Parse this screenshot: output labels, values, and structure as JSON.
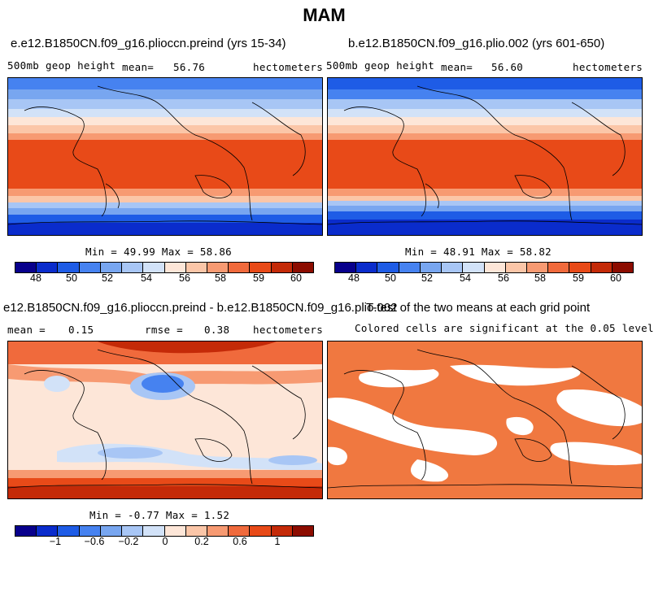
{
  "page": {
    "title": "MAM"
  },
  "panels": [
    {
      "title": "e.e12.B1850CN.f09_g16.plioccn.preind (yrs 15-34)",
      "left_label": "500mb geop height",
      "mean_label": "mean=",
      "mean_value": "56.76",
      "units": "hectometers",
      "stats": "Min =  49.99 Max =   58.86"
    },
    {
      "title": "b.e12.B1850CN.f09_g16.plio.002 (yrs 601-650)",
      "left_label": "500mb geop height",
      "mean_label": "mean=",
      "mean_value": "56.60",
      "units": "hectometers",
      "stats": "Min =  48.91 Max =   58.82"
    },
    {
      "title": "e12.B1850CN.f09_g16.plioccn.preind - b.e12.B1850CN.f09_g16.plio.002",
      "mean_label": "mean =",
      "mean_value": "0.15",
      "rmse_label": "rmse =",
      "rmse_value": "0.38",
      "units": "hectometers",
      "stats": "Min =  -0.77 Max =    1.52"
    },
    {
      "title": "T-test of the two means at each grid point",
      "subtitle": "Colored cells are significant at the 0.05 level"
    }
  ],
  "chart_data": [
    {
      "type": "heatmap",
      "title": "e.e12.B1850CN.f09_g16.plioccn.preind (yrs 15-34)",
      "variable": "500mb geop height",
      "units": "hectometers",
      "mean": 56.76,
      "min": 49.99,
      "max": 58.86,
      "colorbar_ticks": [
        "48",
        "50",
        "52",
        "54",
        "56",
        "58",
        "59",
        "60"
      ]
    },
    {
      "type": "heatmap",
      "title": "b.e12.B1850CN.f09_g16.plio.002 (yrs 601-650)",
      "variable": "500mb geop height",
      "units": "hectometers",
      "mean": 56.6,
      "min": 48.91,
      "max": 58.82,
      "colorbar_ticks": [
        "48",
        "50",
        "52",
        "54",
        "56",
        "58",
        "59",
        "60"
      ]
    },
    {
      "type": "heatmap",
      "title": "e12.B1850CN.f09_g16.plioccn.preind - b.e12.B1850CN.f09_g16.plio.002",
      "units": "hectometers",
      "mean": 0.15,
      "rmse": 0.38,
      "min": -0.77,
      "max": 1.52,
      "colorbar_ticks": [
        "−1",
        "−0.6",
        "−0.2",
        "0",
        "0.2",
        "0.6",
        "1"
      ]
    },
    {
      "type": "heatmap",
      "title": "T-test of the two means at each grid point",
      "note": "Colored cells are significant at the 0.05 level",
      "significance_level": 0.05
    }
  ],
  "colors": {
    "palette": [
      "#08008c",
      "#0a2ccc",
      "#1e5ce6",
      "#4682f0",
      "#78a6f0",
      "#a8c6f5",
      "#d2e2f8",
      "#fde6d8",
      "#fbc6a8",
      "#f79a72",
      "#f06a3c",
      "#e84a18",
      "#c42a08",
      "#8c0c00"
    ],
    "significant": "#f07840"
  }
}
